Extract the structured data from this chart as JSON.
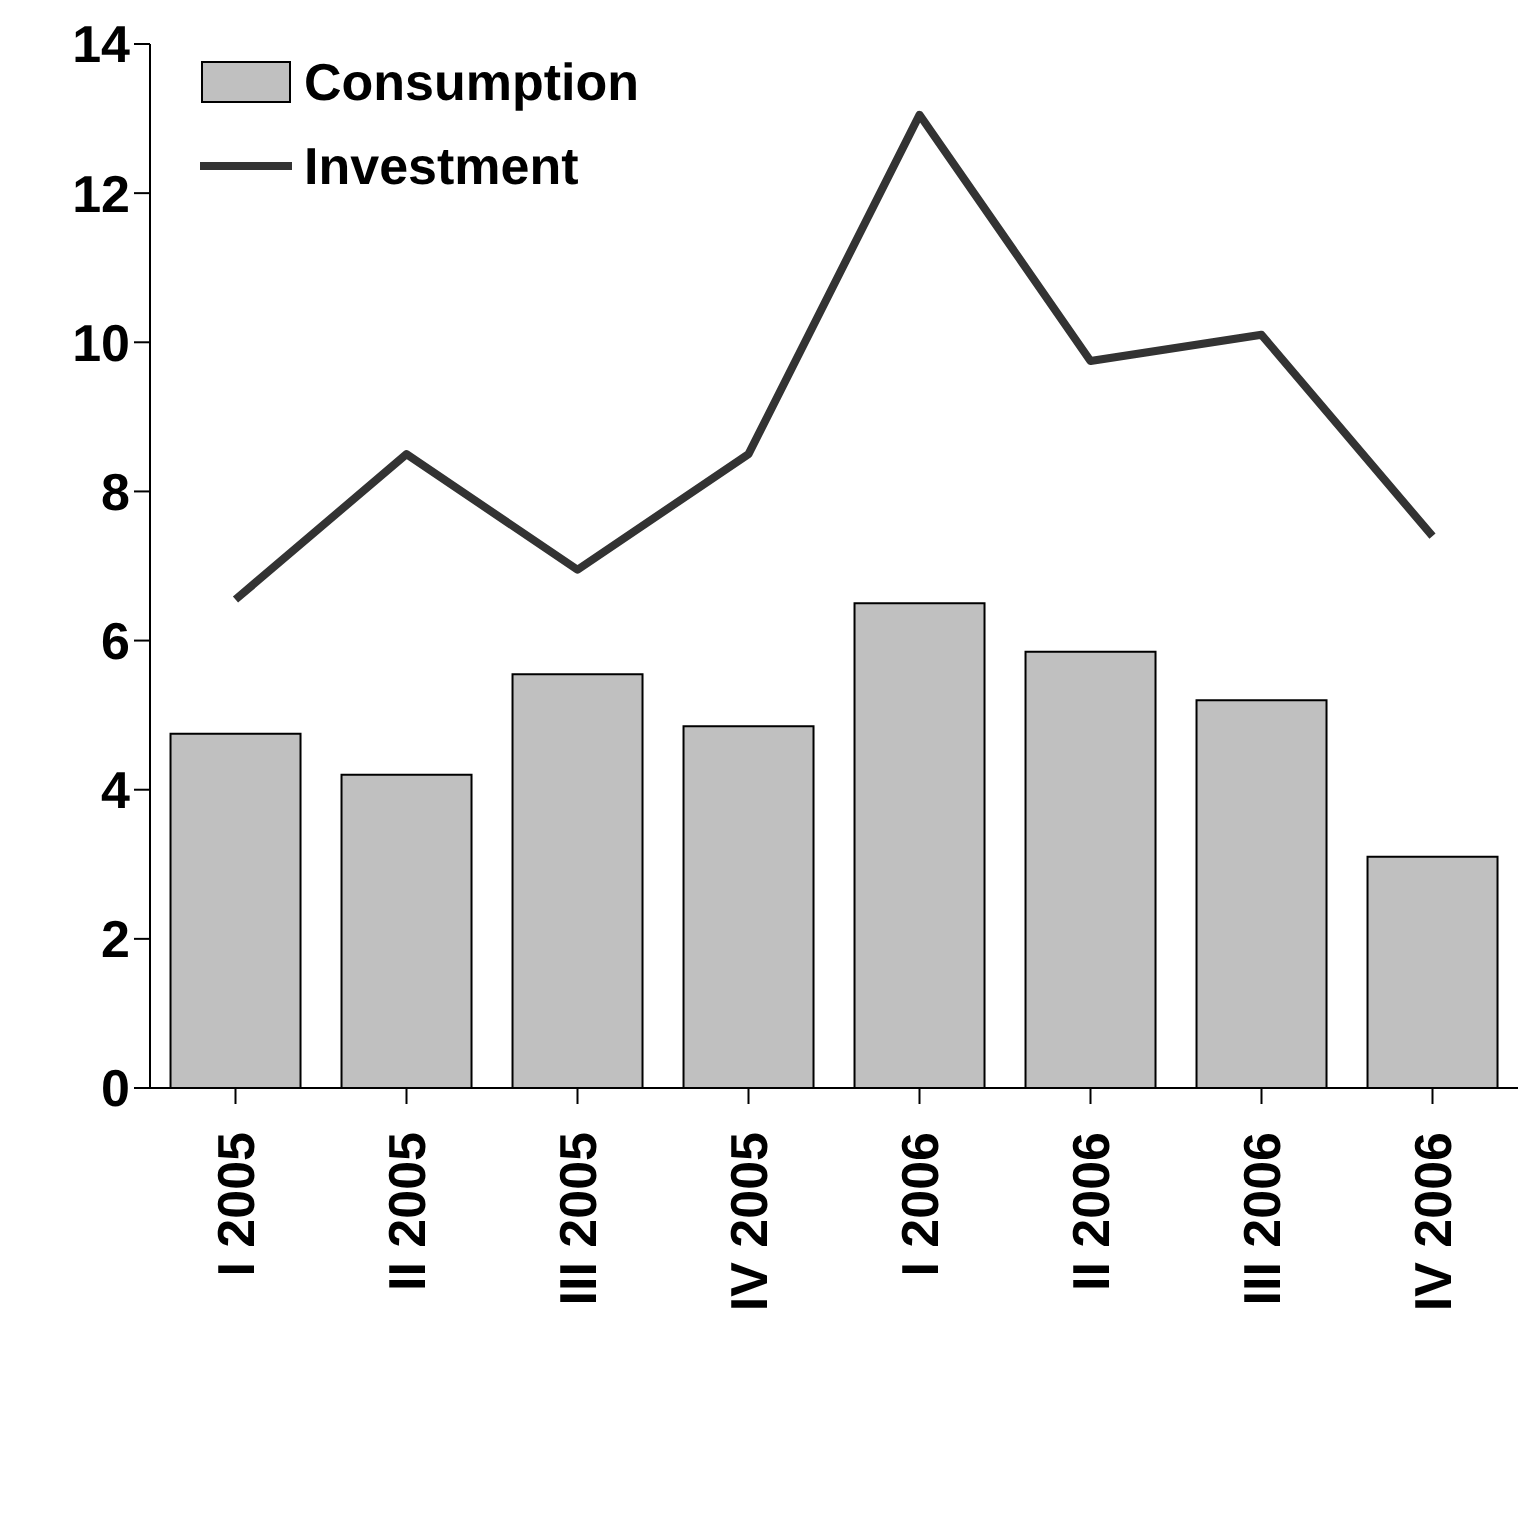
{
  "chart_data": {
    "type": "bar",
    "categories": [
      "I 2005",
      "II 2005",
      "III 2005",
      "IV 2005",
      "I 2006",
      "II 2006",
      "III 2006",
      "IV 2006"
    ],
    "series": [
      {
        "name": "Consumption",
        "color": "#c0c0c0",
        "values": [
          4.75,
          4.2,
          5.55,
          4.85,
          6.5,
          5.85,
          5.2,
          3.1
        ]
      },
      {
        "name": "Investment",
        "type": "line",
        "color": "#333333",
        "values": [
          6.55,
          8.5,
          6.95,
          8.5,
          13.05,
          9.75,
          10.1,
          7.4
        ]
      }
    ],
    "ylim": [
      0,
      14
    ],
    "yticks": [
      0,
      2,
      4,
      6,
      8,
      10,
      12,
      14
    ],
    "grid": false,
    "legend": "top left",
    "marker": "none",
    "line_style": "solid"
  }
}
